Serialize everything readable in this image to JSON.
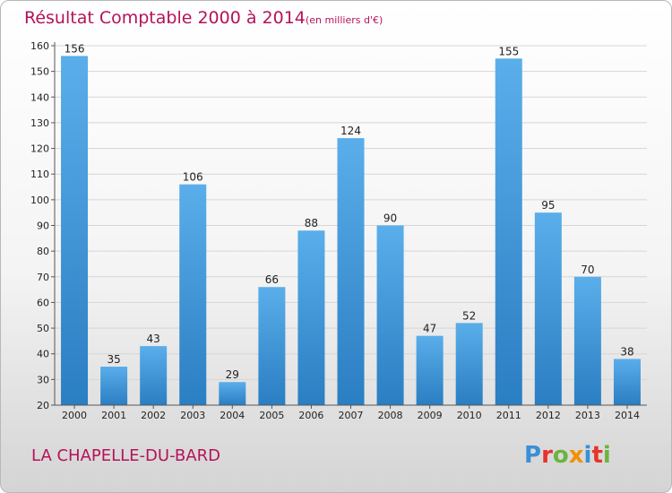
{
  "chart_data": {
    "type": "bar",
    "title": "Résultat Comptable 2000 à 2014",
    "subtitle": "(en milliers d'€)",
    "categories": [
      "2000",
      "2001",
      "2002",
      "2003",
      "2004",
      "2005",
      "2006",
      "2007",
      "2008",
      "2009",
      "2010",
      "2011",
      "2012",
      "2013",
      "2014"
    ],
    "values": [
      156,
      35,
      43,
      106,
      29,
      66,
      88,
      124,
      90,
      47,
      52,
      155,
      95,
      70,
      38
    ],
    "ylim": [
      20,
      160
    ],
    "yticks": [
      20,
      30,
      40,
      50,
      60,
      70,
      80,
      90,
      100,
      110,
      120,
      130,
      140,
      150,
      160
    ],
    "grid": true,
    "bar_color": "#3d8fd1",
    "title_color": "#b5125a"
  },
  "footer": {
    "commune": "LA CHAPELLE-DU-BARD"
  },
  "logo": {
    "text": "Proxiti",
    "letter_colors": [
      "#3a8fd6",
      "#e8322c",
      "#6db33f",
      "#f29100",
      "#3a8fd6",
      "#e8322c",
      "#6db33f"
    ]
  }
}
